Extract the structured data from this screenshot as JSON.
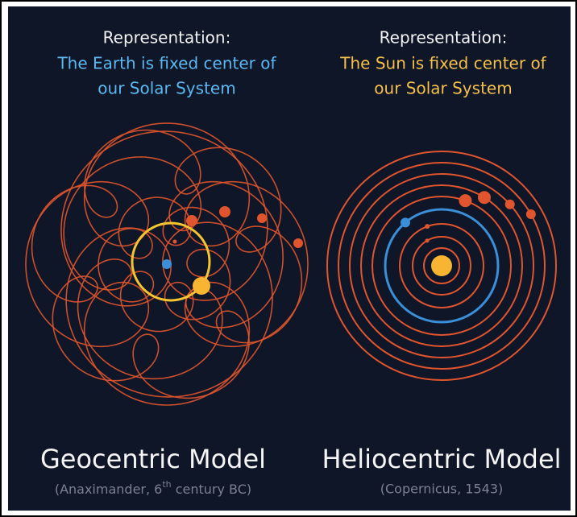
{
  "left": {
    "heading": "Representation:",
    "line1": "The Earth is fixed center of",
    "line2": "our Solar System",
    "title": "Geocentric Model",
    "caption_start": "(Anaximander, 6",
    "caption_sup": "th",
    "caption_end": " century BC)"
  },
  "right": {
    "heading": "Representation:",
    "line1": "The Sun is fixed center of",
    "line2": "our Solar System",
    "title": "Heliocentric Model",
    "caption": "(Copernicus, 1543)"
  }
}
